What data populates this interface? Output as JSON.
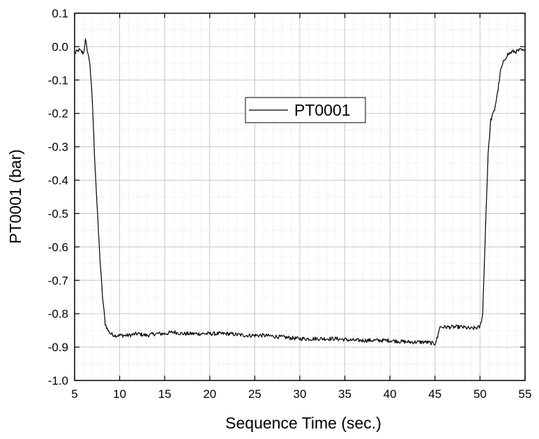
{
  "chart_data": {
    "type": "line",
    "title": "",
    "xlabel": "Sequence Time (sec.)",
    "ylabel": "PT0001 (bar)",
    "xlim": [
      5,
      55
    ],
    "ylim": [
      -1.0,
      0.1
    ],
    "xticks": [
      5,
      10,
      15,
      20,
      25,
      30,
      35,
      40,
      45,
      50,
      55
    ],
    "xtick_labels": [
      "5",
      "10",
      "15",
      "20",
      "25",
      "30",
      "35",
      "40",
      "45",
      "50",
      "55"
    ],
    "yticks": [
      0.1,
      0.0,
      -0.1,
      -0.2,
      -0.3,
      -0.4,
      -0.5,
      -0.6,
      -0.7,
      -0.8,
      -0.9,
      -1.0
    ],
    "ytick_labels": [
      "0.1",
      "0.0",
      "-0.1",
      "-0.2",
      "-0.3",
      "-0.4",
      "-0.5",
      "-0.6",
      "-0.7",
      "-0.8",
      "-0.9",
      "-1.0"
    ],
    "grid": true,
    "minor_grid": true,
    "legend_position": "top-center",
    "colors": {
      "series": "#000000",
      "grid_major": "#c8c8c8",
      "grid_minor": "#e2e2e2"
    },
    "series": [
      {
        "name": "PT0001",
        "x": [
          5.0,
          5.5,
          6.0,
          6.2,
          6.4,
          6.7,
          7.0,
          7.2,
          7.5,
          7.8,
          8.1,
          8.4,
          8.7,
          9.0,
          9.5,
          10.0,
          11,
          12,
          13,
          14,
          15,
          16,
          17,
          18,
          19,
          20,
          22,
          24,
          26,
          28,
          30,
          32,
          34,
          36,
          38,
          40,
          42,
          44,
          45.0,
          45.3,
          45.5,
          46,
          47,
          48,
          49,
          50.0,
          50.3,
          50.6,
          50.9,
          51.2,
          51.6,
          52.0,
          52.3,
          52.7,
          53.0,
          53.3,
          53.6,
          54.0,
          54.5,
          55.0
        ],
        "y": [
          -0.02,
          -0.01,
          -0.02,
          0.02,
          -0.01,
          -0.05,
          -0.18,
          -0.32,
          -0.48,
          -0.63,
          -0.75,
          -0.83,
          -0.85,
          -0.86,
          -0.865,
          -0.865,
          -0.865,
          -0.86,
          -0.865,
          -0.86,
          -0.86,
          -0.855,
          -0.86,
          -0.86,
          -0.86,
          -0.86,
          -0.86,
          -0.865,
          -0.865,
          -0.87,
          -0.875,
          -0.875,
          -0.875,
          -0.88,
          -0.88,
          -0.88,
          -0.885,
          -0.885,
          -0.89,
          -0.87,
          -0.84,
          -0.84,
          -0.84,
          -0.84,
          -0.845,
          -0.84,
          -0.8,
          -0.55,
          -0.32,
          -0.22,
          -0.19,
          -0.13,
          -0.07,
          -0.04,
          -0.025,
          -0.02,
          -0.015,
          -0.015,
          -0.01,
          -0.015
        ]
      }
    ]
  }
}
